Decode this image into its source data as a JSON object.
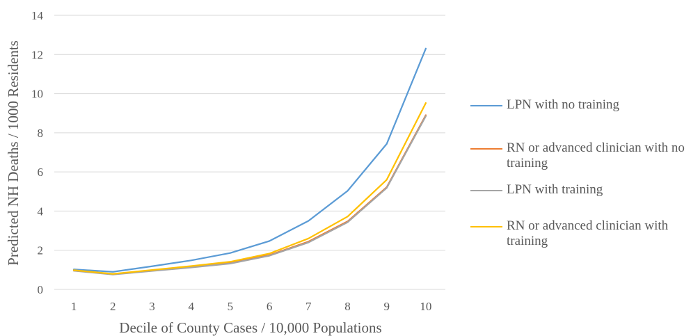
{
  "chart_data": {
    "type": "line",
    "title": "",
    "xlabel": "Decile of County Cases / 10,000 Populations",
    "ylabel": "Predicted NH Deaths / 1000 Residents",
    "x": [
      1,
      2,
      3,
      4,
      5,
      6,
      7,
      8,
      9,
      10
    ],
    "ylim": [
      0,
      14
    ],
    "yticks": [
      0,
      2,
      4,
      6,
      8,
      10,
      12,
      14
    ],
    "grid": "horizontal",
    "legend_position": "right",
    "series": [
      {
        "name": "LPN with no training",
        "color": "#5B9BD5",
        "values": [
          1.02,
          0.9,
          1.18,
          1.48,
          1.86,
          2.47,
          3.5,
          5.03,
          7.43,
          12.3
        ]
      },
      {
        "name": "RN or advanced clinician with no training",
        "color": "#ED7D31",
        "values": [
          0.96,
          0.78,
          0.96,
          1.15,
          1.35,
          1.75,
          2.44,
          3.47,
          5.22,
          8.9
        ]
      },
      {
        "name": "LPN with training",
        "color": "#A5A5A5",
        "values": [
          0.95,
          0.76,
          0.94,
          1.12,
          1.32,
          1.72,
          2.4,
          3.43,
          5.18,
          8.85
        ]
      },
      {
        "name": "RN or advanced clinician with training",
        "color": "#FFC000",
        "values": [
          0.98,
          0.79,
          0.99,
          1.19,
          1.41,
          1.83,
          2.6,
          3.72,
          5.6,
          9.52
        ]
      }
    ]
  }
}
